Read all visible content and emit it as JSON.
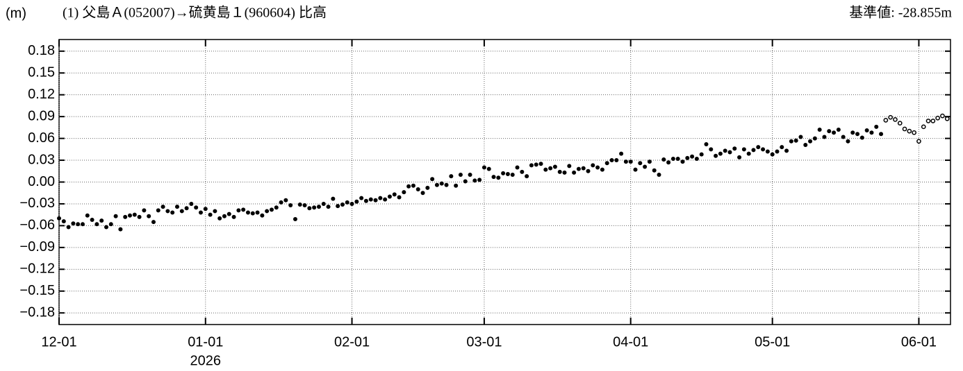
{
  "chart_data": {
    "type": "scatter",
    "unit_label": "(m)",
    "title": "(1) 父島Ａ(052007)→硫黄島１(960604) 比高",
    "reference": "基準値: -28.855m",
    "year_label": "2026",
    "xlim": [
      0,
      188.7
    ],
    "xticks": [
      {
        "value": 0,
        "label": "12-01"
      },
      {
        "value": 31,
        "label": "01-01"
      },
      {
        "value": 62,
        "label": "02-01"
      },
      {
        "value": 90,
        "label": "03-01"
      },
      {
        "value": 121,
        "label": "04-01"
      },
      {
        "value": 151,
        "label": "05-01"
      },
      {
        "value": 182,
        "label": "06-01"
      }
    ],
    "ylim": [
      -0.196,
      0.196
    ],
    "yticks": [
      0.18,
      0.15,
      0.12,
      0.09,
      0.06,
      0.03,
      {
        "value": 0,
        "label": "0.00"
      },
      {
        "value": -0.03,
        "label": "−0.03"
      },
      {
        "value": -0.06,
        "label": "−0.06"
      },
      {
        "value": -0.09,
        "label": "−0.09"
      },
      {
        "value": -0.12,
        "label": "−0.12"
      },
      {
        "value": -0.15,
        "label": "−0.15"
      },
      {
        "value": -0.18,
        "label": "−0.18"
      }
    ],
    "grid": true,
    "series": [
      {
        "color": "#000000",
        "marker": "filled",
        "x": [
          0,
          1,
          2,
          3,
          4,
          5,
          6,
          7,
          8,
          9,
          10,
          11,
          12,
          13,
          14,
          15,
          16,
          17,
          18,
          19,
          20,
          21,
          22,
          23,
          24,
          25,
          26,
          27,
          28,
          29,
          30,
          31,
          32,
          33,
          34,
          35,
          36,
          37,
          38,
          39,
          40,
          41,
          42,
          43,
          44,
          45,
          46,
          47,
          48,
          49,
          50,
          51,
          52,
          53,
          54,
          55,
          56,
          57,
          58,
          59,
          60,
          61,
          62,
          63,
          64,
          65,
          66,
          67,
          68,
          69,
          70,
          71,
          72,
          73,
          74,
          75,
          76,
          77,
          78,
          79,
          80,
          81,
          82,
          83,
          84,
          85,
          86,
          87,
          88,
          89,
          90,
          91,
          92,
          93,
          94,
          95,
          96,
          97,
          98,
          99,
          100,
          101,
          102,
          103,
          104,
          105,
          106,
          107,
          108,
          109,
          110,
          111,
          112,
          113,
          114,
          115,
          116,
          117,
          118,
          119,
          120,
          121,
          122,
          123,
          124,
          125,
          126,
          127,
          128,
          129,
          130,
          131,
          132,
          133,
          134,
          135,
          136,
          137,
          138,
          139,
          140,
          141,
          142,
          143,
          144,
          145,
          146,
          147,
          148,
          149,
          150,
          151,
          152,
          153,
          154,
          155,
          156,
          157,
          158,
          159,
          160,
          161,
          162,
          163,
          164,
          165,
          166,
          167,
          168,
          169,
          170,
          171,
          172,
          173,
          174
        ],
        "values": [
          -0.05,
          -0.054,
          -0.062,
          -0.057,
          -0.058,
          -0.058,
          -0.046,
          -0.052,
          -0.058,
          -0.053,
          -0.062,
          -0.058,
          -0.047,
          -0.065,
          -0.048,
          -0.046,
          -0.045,
          -0.048,
          -0.039,
          -0.047,
          -0.055,
          -0.039,
          -0.034,
          -0.04,
          -0.042,
          -0.034,
          -0.04,
          -0.036,
          -0.03,
          -0.035,
          -0.042,
          -0.037,
          -0.045,
          -0.04,
          -0.05,
          -0.047,
          -0.044,
          -0.048,
          -0.039,
          -0.038,
          -0.042,
          -0.043,
          -0.042,
          -0.046,
          -0.04,
          -0.038,
          -0.035,
          -0.028,
          -0.025,
          -0.032,
          -0.051,
          -0.031,
          -0.032,
          -0.036,
          -0.035,
          -0.034,
          -0.03,
          -0.034,
          -0.023,
          -0.033,
          -0.031,
          -0.028,
          -0.03,
          -0.027,
          -0.022,
          -0.026,
          -0.024,
          -0.025,
          -0.022,
          -0.024,
          -0.02,
          -0.017,
          -0.021,
          -0.014,
          -0.006,
          -0.005,
          -0.01,
          -0.015,
          -0.008,
          0.004,
          -0.004,
          -0.002,
          -0.004,
          0.008,
          -0.005,
          0.01,
          0.001,
          0.01,
          0.002,
          0.003,
          0.02,
          0.018,
          0.007,
          0.006,
          0.012,
          0.011,
          0.01,
          0.02,
          0.014,
          0.008,
          0.023,
          0.024,
          0.025,
          0.017,
          0.019,
          0.021,
          0.014,
          0.013,
          0.022,
          0.013,
          0.018,
          0.019,
          0.015,
          0.023,
          0.02,
          0.017,
          0.026,
          0.03,
          0.03,
          0.039,
          0.028,
          0.028,
          0.017,
          0.026,
          0.021,
          0.028,
          0.016,
          0.01,
          0.031,
          0.027,
          0.032,
          0.032,
          0.028,
          0.033,
          0.035,
          0.032,
          0.038,
          0.052,
          0.045,
          0.036,
          0.039,
          0.043,
          0.041,
          0.046,
          0.034,
          0.045,
          0.039,
          0.044,
          0.048,
          0.045,
          0.042,
          0.038,
          0.042,
          0.048,
          0.043,
          0.056,
          0.057,
          0.062,
          0.051,
          0.056,
          0.06,
          0.072,
          0.062,
          0.07,
          0.068,
          0.072,
          0.062,
          0.056,
          0.068,
          0.066,
          0.061,
          0.071,
          0.068,
          0.076,
          0.066
        ]
      },
      {
        "color": "#000000",
        "marker": "open",
        "x": [
          175,
          176,
          177,
          178,
          179,
          180,
          181,
          182,
          183,
          184,
          185,
          186,
          187,
          188
        ],
        "values": [
          0.085,
          0.089,
          0.086,
          0.081,
          0.073,
          0.07,
          0.068,
          0.056,
          0.076,
          0.084,
          0.084,
          0.088,
          0.091,
          0.087
        ]
      }
    ]
  }
}
